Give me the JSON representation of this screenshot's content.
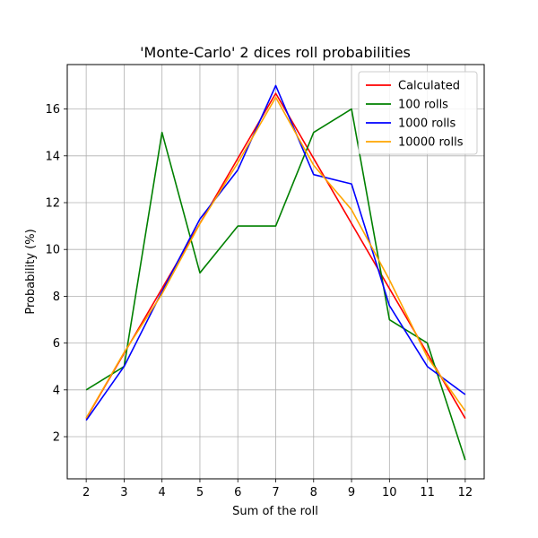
{
  "chart_data": {
    "type": "line",
    "title": "'Monte-Carlo' 2 dices roll probabilities",
    "xlabel": "Sum of the roll",
    "ylabel": "Probability (%)",
    "x": [
      2,
      3,
      4,
      5,
      6,
      7,
      8,
      9,
      10,
      11,
      12
    ],
    "xlim": [
      1.5,
      12.5
    ],
    "ylim": [
      0.2,
      17.9
    ],
    "xticks": [
      2,
      3,
      4,
      5,
      6,
      7,
      8,
      9,
      10,
      11,
      12
    ],
    "yticks": [
      2,
      4,
      6,
      8,
      10,
      12,
      14,
      16
    ],
    "grid": true,
    "legend_position": "top-right",
    "series": [
      {
        "name": "Calculated",
        "color": "#ff0000",
        "values": [
          2.78,
          5.56,
          8.33,
          11.11,
          13.89,
          16.67,
          13.89,
          11.11,
          8.33,
          5.56,
          2.78
        ]
      },
      {
        "name": "100 rolls",
        "color": "#008000",
        "values": [
          4,
          5,
          15,
          9,
          11,
          11,
          15,
          16,
          7,
          6,
          1
        ]
      },
      {
        "name": "1000 rolls",
        "color": "#0000ff",
        "values": [
          2.7,
          5.0,
          8.2,
          11.3,
          13.4,
          17.0,
          13.2,
          12.8,
          7.6,
          5.0,
          3.8
        ]
      },
      {
        "name": "10000 rolls",
        "color": "#ffa500",
        "values": [
          2.8,
          5.6,
          8.1,
          11.1,
          13.7,
          16.5,
          13.6,
          11.7,
          8.7,
          5.4,
          3.1
        ]
      }
    ]
  }
}
